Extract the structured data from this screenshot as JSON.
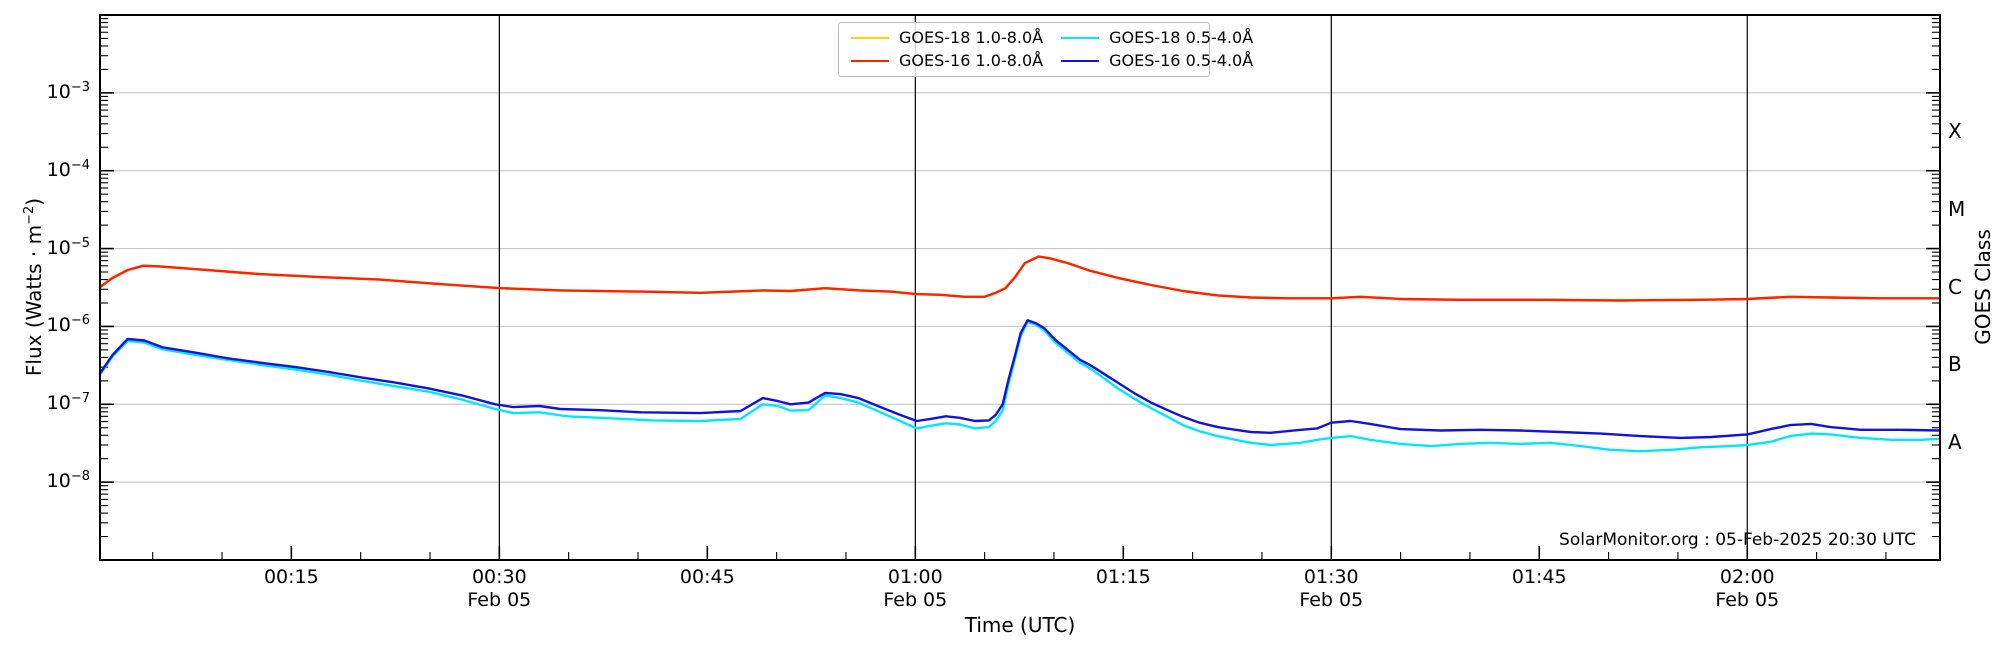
{
  "chart_data": {
    "type": "line",
    "title": "",
    "xlabel": "Time (UTC)",
    "ylabel": "Flux (Watts · m−2)",
    "ylabel_parts": {
      "prefix": "Flux (Watts · m",
      "sup": "−2",
      "suffix": ")"
    },
    "right_axis_label": "GOES Class",
    "watermark": "SolarMonitor.org : 05-Feb-2025 20:30 UTC",
    "y_scale": "log",
    "ylim": [
      1e-09,
      0.01
    ],
    "xlim": [
      1.2,
      133.9
    ],
    "x_minutes_after": "00:00 UTC Feb 05",
    "grid": true,
    "legend_position": "top-center",
    "x_major_ticks": [
      {
        "m": 15,
        "label": "00:15",
        "date": ""
      },
      {
        "m": 30,
        "label": "00:30",
        "date": "Feb 05"
      },
      {
        "m": 45,
        "label": "00:45",
        "date": ""
      },
      {
        "m": 60,
        "label": "01:00",
        "date": "Feb 05"
      },
      {
        "m": 75,
        "label": "01:15",
        "date": ""
      },
      {
        "m": 90,
        "label": "01:30",
        "date": "Feb 05"
      },
      {
        "m": 105,
        "label": "01:45",
        "date": ""
      },
      {
        "m": 120,
        "label": "02:00",
        "date": "Feb 05"
      }
    ],
    "x_minor_step_minutes": 5,
    "y_tick_base": "10",
    "y_tick_labels": [
      {
        "e": -3,
        "exp": "−3"
      },
      {
        "e": -4,
        "exp": "−4"
      },
      {
        "e": -5,
        "exp": "−5"
      },
      {
        "e": -6,
        "exp": "−6"
      },
      {
        "e": -7,
        "exp": "−7"
      },
      {
        "e": -8,
        "exp": "−8"
      }
    ],
    "grid_exponents": [
      -3,
      -4,
      -5,
      -6,
      -7,
      -8
    ],
    "day_lines_minutes": [
      30,
      60,
      90,
      120
    ],
    "goes_classes": [
      {
        "label": "X",
        "exp_mid": -3.5
      },
      {
        "label": "M",
        "exp_mid": -4.5
      },
      {
        "label": "C",
        "exp_mid": -5.5
      },
      {
        "label": "B",
        "exp_mid": -6.5
      },
      {
        "label": "A",
        "exp_mid": -7.5
      }
    ],
    "colors": {
      "goes18_long": "#ffd400",
      "goes16_long": "#ff2200",
      "goes18_short": "#00e6ff",
      "goes16_short": "#1212dd",
      "grid": "#c8c8c8",
      "spine": "#000000",
      "dayline": "#000000"
    },
    "legend": {
      "entries": [
        {
          "label": "GOES-18 1.0-8.0Å",
          "color_key": "goes18_long"
        },
        {
          "label": "GOES-16 1.0-8.0Å",
          "color_key": "goes16_long"
        },
        {
          "label": "GOES-18 0.5-4.0Å",
          "color_key": "goes18_short"
        },
        {
          "label": "GOES-16 0.5-4.0Å",
          "color_key": "goes16_short"
        }
      ]
    },
    "series": [
      {
        "name": "GOES-18 1.0-8.0Å",
        "color_key": "goes18_long",
        "points": [
          [
            1.2,
            3.2e-06
          ],
          [
            2.1,
            4.2e-06
          ],
          [
            3.2,
            5.3e-06
          ],
          [
            4.3,
            6e-06
          ],
          [
            5.5,
            5.9e-06
          ],
          [
            8.4,
            5.4e-06
          ],
          [
            12.7,
            4.7e-06
          ],
          [
            17.1,
            4.3e-06
          ],
          [
            21.4,
            4e-06
          ],
          [
            25.7,
            3.5e-06
          ],
          [
            30.1,
            3.1e-06
          ],
          [
            34.4,
            2.9e-06
          ],
          [
            40.2,
            2.8e-06
          ],
          [
            44.5,
            2.7e-06
          ],
          [
            49,
            2.9e-06
          ],
          [
            51,
            2.85e-06
          ],
          [
            53.5,
            3.1e-06
          ],
          [
            56,
            2.9e-06
          ],
          [
            58.2,
            2.8e-06
          ],
          [
            60.1,
            2.6e-06
          ],
          [
            61.8,
            2.55e-06
          ],
          [
            63.6,
            2.4e-06
          ],
          [
            65,
            2.4e-06
          ],
          [
            65.8,
            2.7e-06
          ],
          [
            66.5,
            3.1e-06
          ],
          [
            67.2,
            4.3e-06
          ],
          [
            67.9,
            6.5e-06
          ],
          [
            68.9,
            7.9e-06
          ],
          [
            69.7,
            7.5e-06
          ],
          [
            71,
            6.5e-06
          ],
          [
            72.6,
            5.2e-06
          ],
          [
            74.6,
            4.2e-06
          ],
          [
            77,
            3.4e-06
          ],
          [
            79.3,
            2.85e-06
          ],
          [
            81.8,
            2.5e-06
          ],
          [
            84.2,
            2.35e-06
          ],
          [
            87,
            2.3e-06
          ],
          [
            90,
            2.3e-06
          ],
          [
            92.1,
            2.4e-06
          ],
          [
            95,
            2.25e-06
          ],
          [
            99.3,
            2.2e-06
          ],
          [
            105.1,
            2.2e-06
          ],
          [
            110.9,
            2.15e-06
          ],
          [
            116.6,
            2.2e-06
          ],
          [
            120,
            2.25e-06
          ],
          [
            123.1,
            2.4e-06
          ],
          [
            126,
            2.35e-06
          ],
          [
            129.6,
            2.3e-06
          ],
          [
            133.9,
            2.3e-06
          ]
        ]
      },
      {
        "name": "GOES-16 1.0-8.0Å",
        "color_key": "goes16_long",
        "points": [
          [
            1.2,
            3.2e-06
          ],
          [
            2.1,
            4.2e-06
          ],
          [
            3.2,
            5.3e-06
          ],
          [
            4.3,
            6e-06
          ],
          [
            5.5,
            5.9e-06
          ],
          [
            8.4,
            5.4e-06
          ],
          [
            12.7,
            4.7e-06
          ],
          [
            17.1,
            4.3e-06
          ],
          [
            21.4,
            4e-06
          ],
          [
            25.7,
            3.5e-06
          ],
          [
            30.1,
            3.1e-06
          ],
          [
            34.4,
            2.9e-06
          ],
          [
            40.2,
            2.8e-06
          ],
          [
            44.5,
            2.7e-06
          ],
          [
            49,
            2.9e-06
          ],
          [
            51,
            2.85e-06
          ],
          [
            53.5,
            3.1e-06
          ],
          [
            56,
            2.9e-06
          ],
          [
            58.2,
            2.8e-06
          ],
          [
            60.1,
            2.6e-06
          ],
          [
            61.8,
            2.55e-06
          ],
          [
            63.6,
            2.4e-06
          ],
          [
            65,
            2.4e-06
          ],
          [
            65.8,
            2.7e-06
          ],
          [
            66.5,
            3.1e-06
          ],
          [
            67.2,
            4.3e-06
          ],
          [
            67.9,
            6.5e-06
          ],
          [
            68.9,
            7.9e-06
          ],
          [
            69.7,
            7.5e-06
          ],
          [
            71,
            6.5e-06
          ],
          [
            72.6,
            5.2e-06
          ],
          [
            74.6,
            4.2e-06
          ],
          [
            77,
            3.4e-06
          ],
          [
            79.3,
            2.85e-06
          ],
          [
            81.8,
            2.5e-06
          ],
          [
            84.2,
            2.35e-06
          ],
          [
            87,
            2.3e-06
          ],
          [
            90,
            2.3e-06
          ],
          [
            92.1,
            2.4e-06
          ],
          [
            95,
            2.25e-06
          ],
          [
            99.3,
            2.2e-06
          ],
          [
            105.1,
            2.2e-06
          ],
          [
            110.9,
            2.15e-06
          ],
          [
            116.6,
            2.2e-06
          ],
          [
            120,
            2.25e-06
          ],
          [
            123.1,
            2.4e-06
          ],
          [
            126,
            2.35e-06
          ],
          [
            129.6,
            2.3e-06
          ],
          [
            133.9,
            2.3e-06
          ]
        ]
      },
      {
        "name": "GOES-18 0.5-4.0Å",
        "color_key": "goes18_short",
        "points": [
          [
            1.2,
            2.4e-07
          ],
          [
            2.1,
            4.1e-07
          ],
          [
            3.2,
            6.5e-07
          ],
          [
            4.4,
            6.2e-07
          ],
          [
            5.7,
            5.1e-07
          ],
          [
            8.1,
            4.3e-07
          ],
          [
            10.4,
            3.7e-07
          ],
          [
            12.9,
            3.2e-07
          ],
          [
            15.3,
            2.8e-07
          ],
          [
            17.7,
            2.4e-07
          ],
          [
            20.1,
            2e-07
          ],
          [
            22.5,
            1.7e-07
          ],
          [
            24.9,
            1.45e-07
          ],
          [
            27.3,
            1.15e-07
          ],
          [
            29.7,
            8.7e-08
          ],
          [
            31,
            7.7e-08
          ],
          [
            32.9,
            7.9e-08
          ],
          [
            34.9,
            7e-08
          ],
          [
            38,
            6.6e-08
          ],
          [
            41,
            6.2e-08
          ],
          [
            44.5,
            6.1e-08
          ],
          [
            47.4,
            6.5e-08
          ],
          [
            49,
            1e-07
          ],
          [
            50.1,
            9.5e-08
          ],
          [
            51,
            8.3e-08
          ],
          [
            52.3,
            8.4e-08
          ],
          [
            53.5,
            1.3e-07
          ],
          [
            54.6,
            1.2e-07
          ],
          [
            55.9,
            1.05e-07
          ],
          [
            57.5,
            7.9e-08
          ],
          [
            58.9,
            6.1e-08
          ],
          [
            60.1,
            4.9e-08
          ],
          [
            61.1,
            5.3e-08
          ],
          [
            62.2,
            5.7e-08
          ],
          [
            63.2,
            5.5e-08
          ],
          [
            64.3,
            4.9e-08
          ],
          [
            65.3,
            5.1e-08
          ],
          [
            65.8,
            6.1e-08
          ],
          [
            66.3,
            8.4e-08
          ],
          [
            66.7,
            1.75e-07
          ],
          [
            67.2,
            3.9e-07
          ],
          [
            67.6,
            7.5e-07
          ],
          [
            68.1,
            1.15e-06
          ],
          [
            68.7,
            1.05e-06
          ],
          [
            69.3,
            8.9e-07
          ],
          [
            70.1,
            6.2e-07
          ],
          [
            71,
            4.6e-07
          ],
          [
            71.9,
            3.4e-07
          ],
          [
            72.6,
            2.9e-07
          ],
          [
            73.7,
            2.1e-07
          ],
          [
            74.6,
            1.6e-07
          ],
          [
            75.9,
            1.15e-07
          ],
          [
            77,
            8.9e-08
          ],
          [
            78.2,
            6.9e-08
          ],
          [
            79.3,
            5.4e-08
          ],
          [
            80.5,
            4.5e-08
          ],
          [
            81.8,
            3.9e-08
          ],
          [
            83.1,
            3.5e-08
          ],
          [
            84.2,
            3.2e-08
          ],
          [
            85.6,
            3e-08
          ],
          [
            87.8,
            3.2e-08
          ],
          [
            89,
            3.5e-08
          ],
          [
            90,
            3.7e-08
          ],
          [
            91.4,
            3.9e-08
          ],
          [
            92.8,
            3.5e-08
          ],
          [
            95,
            3.1e-08
          ],
          [
            97.2,
            2.9e-08
          ],
          [
            99.3,
            3.1e-08
          ],
          [
            101.5,
            3.2e-08
          ],
          [
            103.6,
            3.1e-08
          ],
          [
            105.8,
            3.2e-08
          ],
          [
            108,
            2.9e-08
          ],
          [
            110.1,
            2.6e-08
          ],
          [
            112.3,
            2.5e-08
          ],
          [
            114.5,
            2.6e-08
          ],
          [
            116.6,
            2.8e-08
          ],
          [
            118.8,
            2.9e-08
          ],
          [
            120,
            3e-08
          ],
          [
            121.7,
            3.3e-08
          ],
          [
            123.1,
            3.9e-08
          ],
          [
            124.6,
            4.2e-08
          ],
          [
            126,
            4.1e-08
          ],
          [
            128.2,
            3.7e-08
          ],
          [
            130.4,
            3.5e-08
          ],
          [
            132.5,
            3.5e-08
          ],
          [
            133.9,
            3.6e-08
          ]
        ]
      },
      {
        "name": "GOES-16 0.5-4.0Å",
        "color_key": "goes16_short",
        "points": [
          [
            1.2,
            2.5e-07
          ],
          [
            2.1,
            4.3e-07
          ],
          [
            3.2,
            6.9e-07
          ],
          [
            4.4,
            6.6e-07
          ],
          [
            5.7,
            5.4e-07
          ],
          [
            8.1,
            4.6e-07
          ],
          [
            10.4,
            3.9e-07
          ],
          [
            12.9,
            3.4e-07
          ],
          [
            15.3,
            3e-07
          ],
          [
            17.7,
            2.6e-07
          ],
          [
            20.1,
            2.2e-07
          ],
          [
            22.5,
            1.9e-07
          ],
          [
            24.9,
            1.6e-07
          ],
          [
            27.3,
            1.3e-07
          ],
          [
            29.7,
            1e-07
          ],
          [
            31,
            9.2e-08
          ],
          [
            32.9,
            9.5e-08
          ],
          [
            34.4,
            8.7e-08
          ],
          [
            37.3,
            8.4e-08
          ],
          [
            40.2,
            7.9e-08
          ],
          [
            44.5,
            7.7e-08
          ],
          [
            47.4,
            8.2e-08
          ],
          [
            49,
            1.2e-07
          ],
          [
            50.1,
            1.1e-07
          ],
          [
            51,
            1e-07
          ],
          [
            52.3,
            1.05e-07
          ],
          [
            53.5,
            1.4e-07
          ],
          [
            54.6,
            1.35e-07
          ],
          [
            55.9,
            1.2e-07
          ],
          [
            57.5,
            9.2e-08
          ],
          [
            58.9,
            7.3e-08
          ],
          [
            60.1,
            6.1e-08
          ],
          [
            61.1,
            6.5e-08
          ],
          [
            62.2,
            7e-08
          ],
          [
            63.2,
            6.7e-08
          ],
          [
            64.3,
            6.1e-08
          ],
          [
            65.3,
            6.2e-08
          ],
          [
            65.8,
            7.3e-08
          ],
          [
            66.3,
            1e-07
          ],
          [
            66.7,
            2e-07
          ],
          [
            67.2,
            4.3e-07
          ],
          [
            67.6,
            8.2e-07
          ],
          [
            68.1,
            1.2e-06
          ],
          [
            68.7,
            1.1e-06
          ],
          [
            69.3,
            9.5e-07
          ],
          [
            70.1,
            6.7e-07
          ],
          [
            71,
            5e-07
          ],
          [
            71.9,
            3.7e-07
          ],
          [
            72.6,
            3.2e-07
          ],
          [
            73.7,
            2.4e-07
          ],
          [
            74.6,
            1.9e-07
          ],
          [
            75.9,
            1.35e-07
          ],
          [
            77,
            1.05e-07
          ],
          [
            78.2,
            8.4e-08
          ],
          [
            79.3,
            6.9e-08
          ],
          [
            80.5,
            5.8e-08
          ],
          [
            81.8,
            5.1e-08
          ],
          [
            83.1,
            4.7e-08
          ],
          [
            84.2,
            4.4e-08
          ],
          [
            85.6,
            4.3e-08
          ],
          [
            87.8,
            4.7e-08
          ],
          [
            89,
            4.9e-08
          ],
          [
            90,
            5.8e-08
          ],
          [
            91.4,
            6.1e-08
          ],
          [
            92.8,
            5.6e-08
          ],
          [
            95,
            4.8e-08
          ],
          [
            97.9,
            4.6e-08
          ],
          [
            100.7,
            4.7e-08
          ],
          [
            103.6,
            4.6e-08
          ],
          [
            106.5,
            4.4e-08
          ],
          [
            109.4,
            4.2e-08
          ],
          [
            112.3,
            3.9e-08
          ],
          [
            115.2,
            3.7e-08
          ],
          [
            117.4,
            3.8e-08
          ],
          [
            120,
            4.1e-08
          ],
          [
            121.7,
            4.8e-08
          ],
          [
            123.1,
            5.4e-08
          ],
          [
            124.6,
            5.6e-08
          ],
          [
            126,
            5.1e-08
          ],
          [
            128.2,
            4.7e-08
          ],
          [
            131.1,
            4.7e-08
          ],
          [
            133.9,
            4.6e-08
          ]
        ]
      }
    ]
  }
}
